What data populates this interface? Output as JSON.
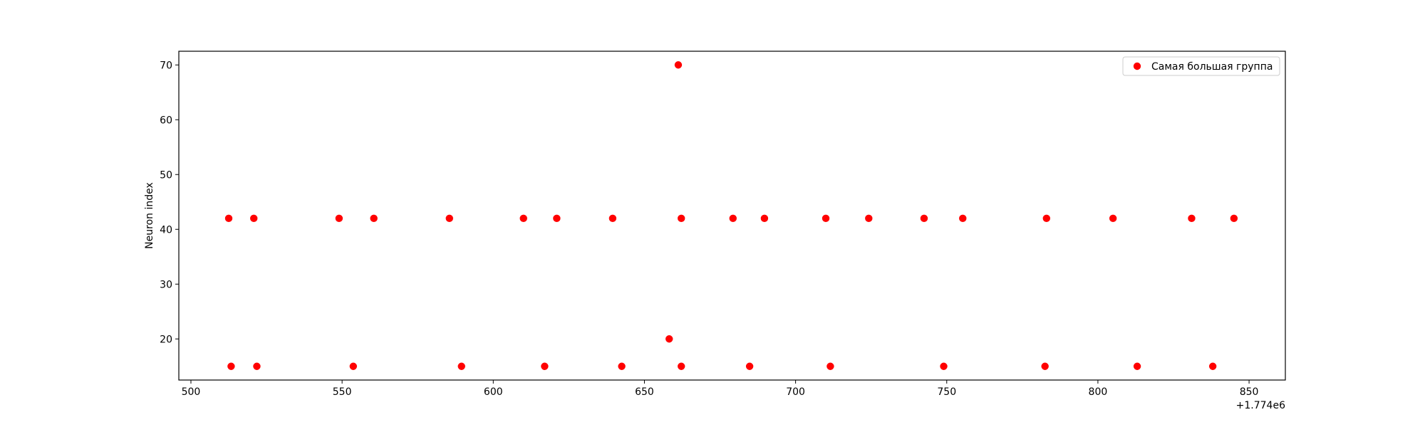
{
  "chart_data": {
    "type": "scatter",
    "title": "",
    "xlabel": "",
    "ylabel": "Neuron index",
    "x_offset_label": "+1.774e6",
    "xlim": [
      1774496,
      1774862
    ],
    "ylim": [
      12.5,
      72.5
    ],
    "xticks": [
      500,
      550,
      600,
      650,
      700,
      750,
      800,
      850
    ],
    "yticks": [
      20,
      30,
      40,
      50,
      60,
      70
    ],
    "grid": false,
    "legend_position": "top-right",
    "series": [
      {
        "name": "Самая большая группа",
        "color": "#ff0000",
        "points": [
          {
            "x": 1774512.5,
            "y": 42
          },
          {
            "x": 1774520.8,
            "y": 42
          },
          {
            "x": 1774549.0,
            "y": 42
          },
          {
            "x": 1774560.5,
            "y": 42
          },
          {
            "x": 1774585.5,
            "y": 42
          },
          {
            "x": 1774610.0,
            "y": 42
          },
          {
            "x": 1774621.0,
            "y": 42
          },
          {
            "x": 1774639.5,
            "y": 42
          },
          {
            "x": 1774662.2,
            "y": 42
          },
          {
            "x": 1774679.3,
            "y": 42
          },
          {
            "x": 1774689.7,
            "y": 42
          },
          {
            "x": 1774710.0,
            "y": 42
          },
          {
            "x": 1774724.2,
            "y": 42
          },
          {
            "x": 1774742.5,
            "y": 42
          },
          {
            "x": 1774755.3,
            "y": 42
          },
          {
            "x": 1774783.0,
            "y": 42
          },
          {
            "x": 1774805.0,
            "y": 42
          },
          {
            "x": 1774831.0,
            "y": 42
          },
          {
            "x": 1774845.0,
            "y": 42
          },
          {
            "x": 1774513.3,
            "y": 15
          },
          {
            "x": 1774521.8,
            "y": 15
          },
          {
            "x": 1774553.7,
            "y": 15
          },
          {
            "x": 1774589.5,
            "y": 15
          },
          {
            "x": 1774617.0,
            "y": 15
          },
          {
            "x": 1774642.5,
            "y": 15
          },
          {
            "x": 1774662.2,
            "y": 15
          },
          {
            "x": 1774684.8,
            "y": 15
          },
          {
            "x": 1774711.5,
            "y": 15
          },
          {
            "x": 1774749.0,
            "y": 15
          },
          {
            "x": 1774782.5,
            "y": 15
          },
          {
            "x": 1774813.0,
            "y": 15
          },
          {
            "x": 1774838.0,
            "y": 15
          },
          {
            "x": 1774658.2,
            "y": 20
          },
          {
            "x": 1774661.2,
            "y": 70
          }
        ]
      }
    ]
  }
}
